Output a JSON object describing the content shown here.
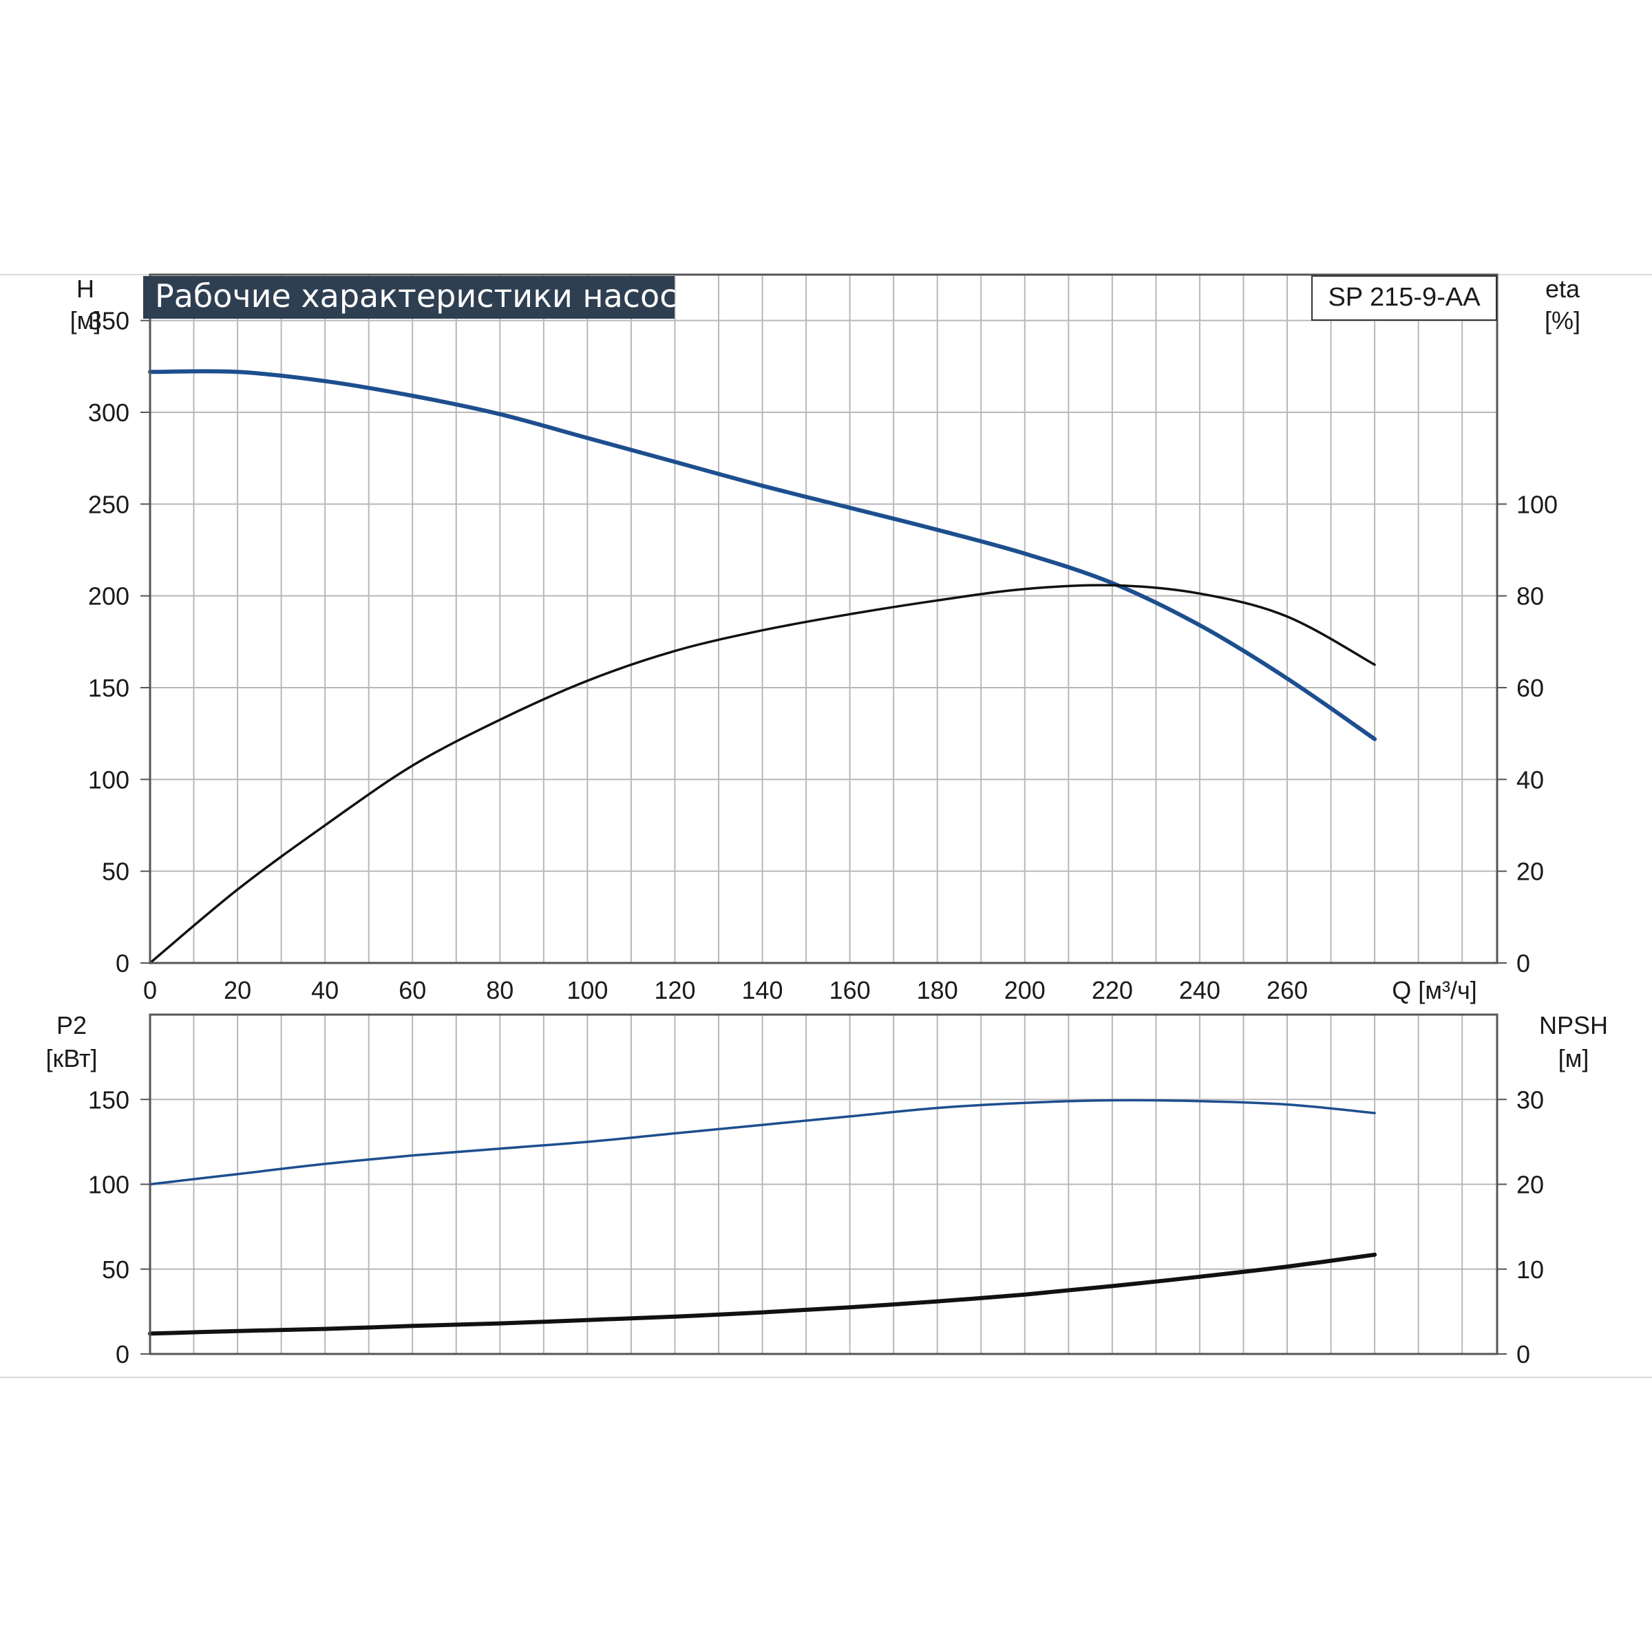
{
  "banner": "Рабочие характеристики насоса",
  "model": "SP 215-9-AA",
  "colors": {
    "blue_curve": "#1d4f8f",
    "black_curve": "#111111",
    "grid": "#b8b8b8",
    "banner_bg": "#2f3f52"
  },
  "chart_data": [
    {
      "type": "line",
      "title": "Рабочие характеристики насоса",
      "xlabel": "Q [м³/ч]",
      "xticks": [
        0,
        20,
        40,
        60,
        80,
        100,
        120,
        140,
        160,
        180,
        200,
        220,
        240,
        260
      ],
      "xlim": [
        0,
        308
      ],
      "y_left": {
        "label_line1": "H",
        "label_line2": "[м]",
        "lim": [
          0,
          375
        ],
        "ticks": [
          0,
          50,
          100,
          150,
          200,
          250,
          300,
          350
        ]
      },
      "y_right": {
        "label_line1": "eta",
        "label_line2": "[%]",
        "lim": [
          0,
          150
        ],
        "ticks": [
          0,
          20,
          40,
          60,
          80,
          100
        ]
      },
      "grid": true,
      "series": [
        {
          "name": "H",
          "axis": "left",
          "color": "#1d4f8f",
          "x": [
            0,
            20,
            40,
            60,
            80,
            100,
            120,
            140,
            160,
            180,
            200,
            220,
            240,
            260,
            280
          ],
          "y": [
            322,
            322,
            317,
            309,
            299,
            286,
            273,
            260,
            248,
            236,
            223,
            207,
            184,
            155,
            122
          ]
        },
        {
          "name": "eta",
          "axis": "right",
          "color": "#111111",
          "x": [
            0,
            20,
            40,
            60,
            80,
            100,
            120,
            140,
            160,
            180,
            200,
            220,
            240,
            260,
            280
          ],
          "y": [
            0,
            16,
            30,
            43,
            53,
            61.5,
            68,
            72.5,
            76,
            79,
            81.5,
            82.3,
            80.5,
            75.5,
            65
          ]
        }
      ]
    },
    {
      "type": "line",
      "xticks": [
        0,
        20,
        40,
        60,
        80,
        100,
        120,
        140,
        160,
        180,
        200,
        220,
        240,
        260
      ],
      "xlim": [
        0,
        308
      ],
      "y_left": {
        "label_line1": "P2",
        "label_line2": "[кВт]",
        "lim": [
          0,
          200
        ],
        "ticks": [
          0,
          50,
          100,
          150
        ]
      },
      "y_right": {
        "label_line1": "NPSH",
        "label_line2": "[м]",
        "lim": [
          0,
          40
        ],
        "ticks": [
          0,
          10,
          20,
          30
        ]
      },
      "grid": true,
      "series": [
        {
          "name": "P2",
          "axis": "left",
          "color": "#1d4f8f",
          "x": [
            0,
            20,
            40,
            60,
            80,
            100,
            120,
            140,
            160,
            180,
            200,
            220,
            240,
            260,
            280
          ],
          "y": [
            100,
            106,
            112,
            117,
            121,
            125,
            130,
            135,
            140,
            145,
            148,
            149.5,
            149,
            147,
            142
          ]
        },
        {
          "name": "NPSH",
          "axis": "right",
          "color": "#111111",
          "x": [
            0,
            20,
            40,
            60,
            80,
            100,
            120,
            140,
            160,
            180,
            200,
            220,
            240,
            260,
            280
          ],
          "y": [
            2.4,
            2.7,
            2.95,
            3.3,
            3.6,
            4.0,
            4.4,
            4.9,
            5.5,
            6.2,
            7.0,
            8.0,
            9.1,
            10.3,
            11.7
          ]
        }
      ]
    }
  ]
}
